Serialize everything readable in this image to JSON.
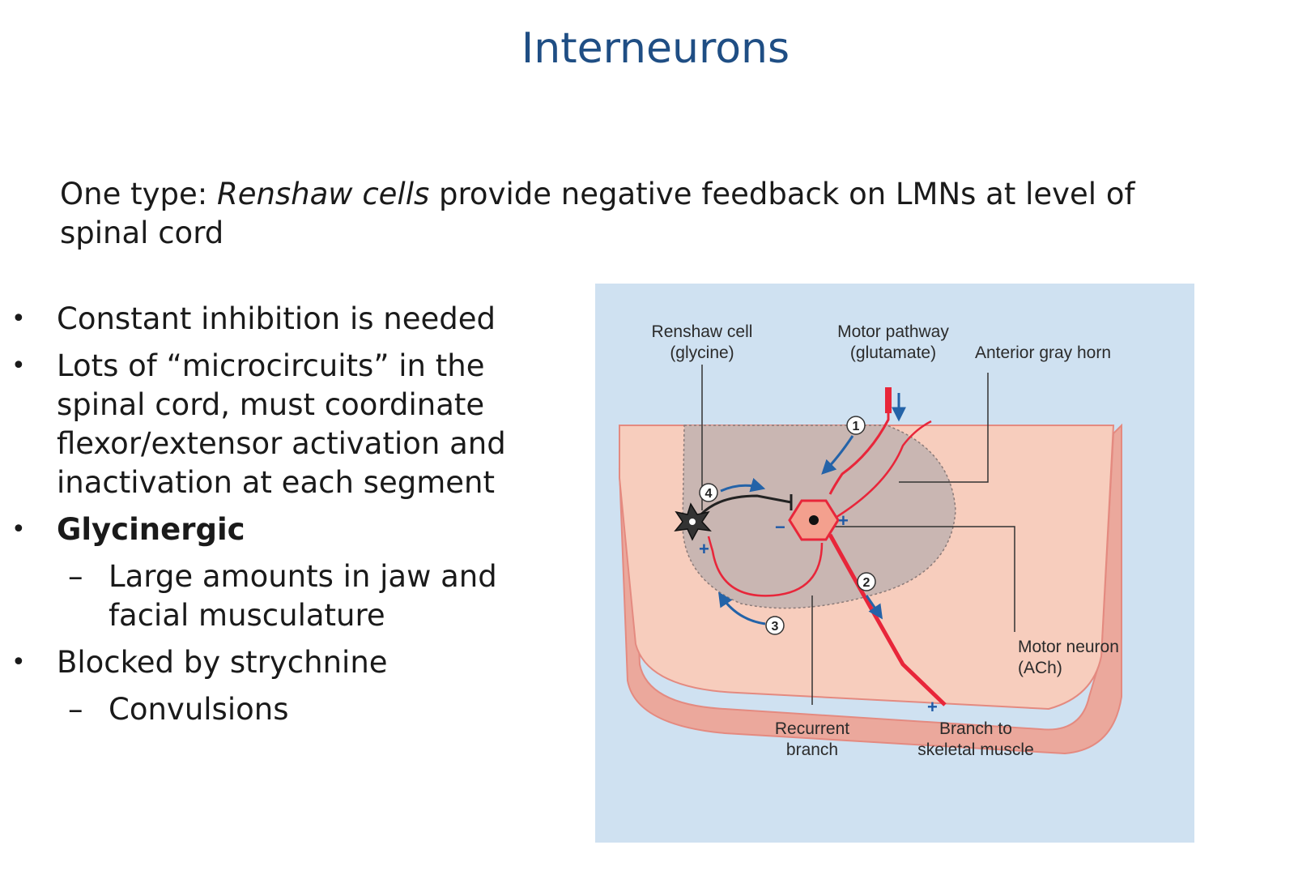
{
  "slide": {
    "title": "Interneurons",
    "intro": {
      "prefix": "One type: ",
      "emphasis": "Renshaw cells",
      "suffix": " provide negative feedback on LMNs at level of spinal cord"
    },
    "bullets": [
      {
        "text": "Constant inhibition is needed"
      },
      {
        "text": "Lots of “microcircuits” in the spinal cord, must coordinate flexor/extensor activation and inactivation at each segment"
      },
      {
        "text": "Glycinergic",
        "sub": [
          "Large amounts in jaw and facial musculature"
        ]
      },
      {
        "text": "Blocked by strychnine",
        "sub": [
          "Convulsions"
        ]
      }
    ]
  },
  "diagram": {
    "labels": {
      "renshaw_1": "Renshaw cell",
      "renshaw_2": "(glycine)",
      "motor_pathway_1": "Motor pathway",
      "motor_pathway_2": "(glutamate)",
      "anterior_gray_horn": "Anterior gray horn",
      "motor_neuron_1": "Motor neuron",
      "motor_neuron_2": "(ACh)",
      "recurrent_1": "Recurrent",
      "recurrent_2": "branch",
      "branch_skeletal_1": "Branch to",
      "branch_skeletal_2": "skeletal muscle"
    },
    "steps": [
      "1",
      "2",
      "3",
      "4"
    ],
    "signs": {
      "plus": "+",
      "minus": "−"
    },
    "colors": {
      "background": "#cfe1f1",
      "tissue": "#f7cdbd",
      "tissue_edge": "#e48a80",
      "gray_horn": "#c9b6b2",
      "neuron": "#e8263a",
      "arrow": "#2463a8"
    }
  }
}
